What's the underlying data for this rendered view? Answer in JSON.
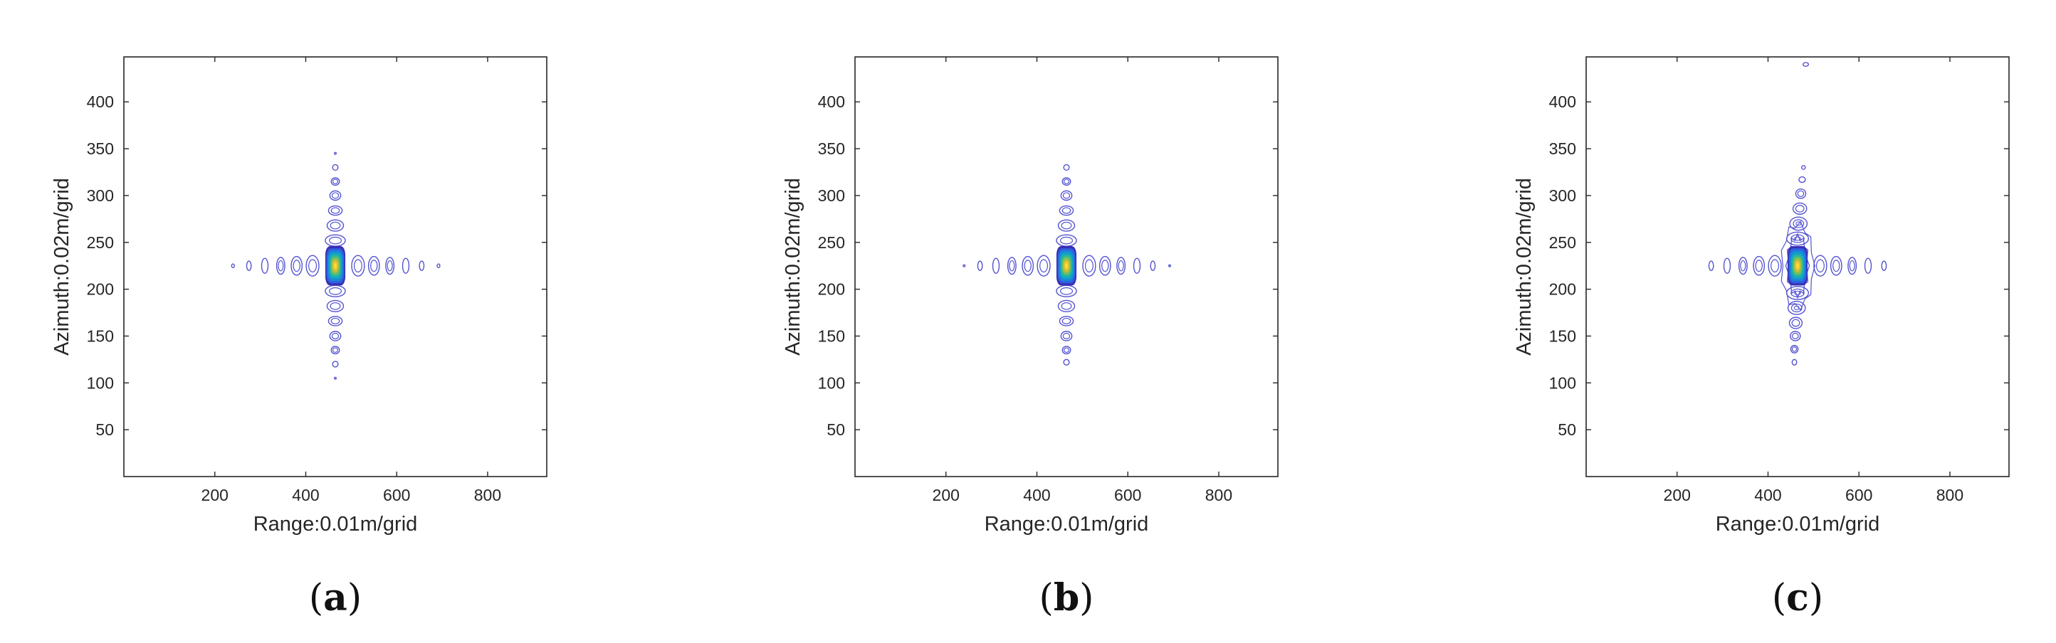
{
  "chart_data": [
    {
      "type": "contour",
      "panel_label": "(a)",
      "panel_letter": "a",
      "xlabel": "Range:0.01m/grid",
      "ylabel": "Azimuth:0.02m/grid",
      "xlim": [
        0,
        930
      ],
      "ylim": [
        0,
        448
      ],
      "xticks": [
        200,
        400,
        600,
        800
      ],
      "yticks": [
        50,
        100,
        150,
        200,
        250,
        300,
        350,
        400
      ],
      "colormap": "parula",
      "peak": {
        "x": 465,
        "y": 225
      },
      "sidelobes_range": [
        {
          "x": 240,
          "y": 225,
          "rx": 3,
          "ry": 2
        },
        {
          "x": 275,
          "y": 225,
          "rx": 5,
          "ry": 5
        },
        {
          "x": 310,
          "y": 225,
          "rx": 7,
          "ry": 8
        },
        {
          "x": 345,
          "y": 225,
          "rx": 9,
          "ry": 9
        },
        {
          "x": 380,
          "y": 225,
          "rx": 12,
          "ry": 10
        },
        {
          "x": 415,
          "y": 225,
          "rx": 14,
          "ry": 11
        },
        {
          "x": 515,
          "y": 225,
          "rx": 14,
          "ry": 11
        },
        {
          "x": 550,
          "y": 225,
          "rx": 12,
          "ry": 10
        },
        {
          "x": 585,
          "y": 225,
          "rx": 9,
          "ry": 9
        },
        {
          "x": 620,
          "y": 225,
          "rx": 7,
          "ry": 8
        },
        {
          "x": 655,
          "y": 225,
          "rx": 5,
          "ry": 5
        },
        {
          "x": 692,
          "y": 225,
          "rx": 3,
          "ry": 2
        }
      ],
      "sidelobes_azimuth": [
        {
          "x": 465,
          "y": 345,
          "rx": 2,
          "ry": 1
        },
        {
          "x": 465,
          "y": 330,
          "rx": 6,
          "ry": 3
        },
        {
          "x": 465,
          "y": 315,
          "rx": 9,
          "ry": 4
        },
        {
          "x": 465,
          "y": 300,
          "rx": 12,
          "ry": 5
        },
        {
          "x": 465,
          "y": 284,
          "rx": 15,
          "ry": 5
        },
        {
          "x": 465,
          "y": 268,
          "rx": 18,
          "ry": 6
        },
        {
          "x": 465,
          "y": 252,
          "rx": 22,
          "ry": 6
        },
        {
          "x": 465,
          "y": 198,
          "rx": 22,
          "ry": 6
        },
        {
          "x": 465,
          "y": 182,
          "rx": 18,
          "ry": 6
        },
        {
          "x": 465,
          "y": 166,
          "rx": 15,
          "ry": 5
        },
        {
          "x": 465,
          "y": 150,
          "rx": 12,
          "ry": 5
        },
        {
          "x": 465,
          "y": 135,
          "rx": 9,
          "ry": 4
        },
        {
          "x": 465,
          "y": 120,
          "rx": 6,
          "ry": 3
        },
        {
          "x": 465,
          "y": 105,
          "rx": 2,
          "ry": 1
        }
      ]
    },
    {
      "type": "contour",
      "panel_label": "(b)",
      "panel_letter": "b",
      "xlabel": "Range:0.01m/grid",
      "ylabel": "Azimuth:0.02m/grid",
      "xlim": [
        0,
        930
      ],
      "ylim": [
        0,
        448
      ],
      "xticks": [
        200,
        400,
        600,
        800
      ],
      "yticks": [
        50,
        100,
        150,
        200,
        250,
        300,
        350,
        400
      ],
      "colormap": "parula",
      "peak": {
        "x": 465,
        "y": 225
      },
      "sidelobes_range": [
        {
          "x": 240,
          "y": 225,
          "rx": 2,
          "ry": 1
        },
        {
          "x": 275,
          "y": 225,
          "rx": 5,
          "ry": 5
        },
        {
          "x": 310,
          "y": 225,
          "rx": 7,
          "ry": 8
        },
        {
          "x": 345,
          "y": 225,
          "rx": 9,
          "ry": 9
        },
        {
          "x": 380,
          "y": 225,
          "rx": 12,
          "ry": 10
        },
        {
          "x": 415,
          "y": 225,
          "rx": 14,
          "ry": 11
        },
        {
          "x": 515,
          "y": 225,
          "rx": 14,
          "ry": 11
        },
        {
          "x": 550,
          "y": 225,
          "rx": 12,
          "ry": 10
        },
        {
          "x": 585,
          "y": 225,
          "rx": 9,
          "ry": 9
        },
        {
          "x": 620,
          "y": 225,
          "rx": 7,
          "ry": 8
        },
        {
          "x": 655,
          "y": 225,
          "rx": 5,
          "ry": 5
        },
        {
          "x": 692,
          "y": 225,
          "rx": 2,
          "ry": 1
        }
      ],
      "sidelobes_azimuth": [
        {
          "x": 465,
          "y": 330,
          "rx": 6,
          "ry": 3
        },
        {
          "x": 465,
          "y": 315,
          "rx": 9,
          "ry": 4
        },
        {
          "x": 465,
          "y": 300,
          "rx": 12,
          "ry": 5
        },
        {
          "x": 465,
          "y": 284,
          "rx": 15,
          "ry": 5
        },
        {
          "x": 465,
          "y": 268,
          "rx": 18,
          "ry": 6
        },
        {
          "x": 465,
          "y": 252,
          "rx": 22,
          "ry": 6
        },
        {
          "x": 465,
          "y": 198,
          "rx": 22,
          "ry": 6
        },
        {
          "x": 465,
          "y": 182,
          "rx": 18,
          "ry": 6
        },
        {
          "x": 465,
          "y": 166,
          "rx": 15,
          "ry": 5
        },
        {
          "x": 465,
          "y": 150,
          "rx": 12,
          "ry": 5
        },
        {
          "x": 465,
          "y": 135,
          "rx": 9,
          "ry": 4
        },
        {
          "x": 465,
          "y": 122,
          "rx": 6,
          "ry": 3
        }
      ]
    },
    {
      "type": "contour",
      "panel_label": "(c)",
      "panel_letter": "c",
      "xlabel": "Range:0.01m/grid",
      "ylabel": "Azimuth:0.02m/grid",
      "xlim": [
        0,
        930
      ],
      "ylim": [
        0,
        448
      ],
      "xticks": [
        200,
        400,
        600,
        800
      ],
      "yticks": [
        50,
        100,
        150,
        200,
        250,
        300,
        350,
        400
      ],
      "colormap": "parula",
      "peak": {
        "x": 465,
        "y": 225
      },
      "sidelobes_range": [
        {
          "x": 275,
          "y": 225,
          "rx": 5,
          "ry": 5
        },
        {
          "x": 310,
          "y": 225,
          "rx": 7,
          "ry": 8
        },
        {
          "x": 345,
          "y": 225,
          "rx": 9,
          "ry": 9
        },
        {
          "x": 380,
          "y": 225,
          "rx": 12,
          "ry": 10
        },
        {
          "x": 415,
          "y": 225,
          "rx": 14,
          "ry": 11
        },
        {
          "x": 515,
          "y": 225,
          "rx": 14,
          "ry": 11
        },
        {
          "x": 550,
          "y": 225,
          "rx": 12,
          "ry": 10
        },
        {
          "x": 585,
          "y": 225,
          "rx": 9,
          "ry": 9
        },
        {
          "x": 620,
          "y": 225,
          "rx": 7,
          "ry": 8
        },
        {
          "x": 655,
          "y": 225,
          "rx": 5,
          "ry": 5
        }
      ],
      "sidelobes_azimuth": [
        {
          "x": 483,
          "y": 440,
          "rx": 6,
          "ry": 2
        },
        {
          "x": 478,
          "y": 330,
          "rx": 4,
          "ry": 2
        },
        {
          "x": 475,
          "y": 317,
          "rx": 7,
          "ry": 3
        },
        {
          "x": 472,
          "y": 302,
          "rx": 11,
          "ry": 5
        },
        {
          "x": 470,
          "y": 286,
          "rx": 15,
          "ry": 6
        },
        {
          "x": 467,
          "y": 270,
          "rx": 19,
          "ry": 7
        },
        {
          "x": 465,
          "y": 254,
          "rx": 24,
          "ry": 7
        },
        {
          "x": 465,
          "y": 196,
          "rx": 24,
          "ry": 7
        },
        {
          "x": 463,
          "y": 180,
          "rx": 19,
          "ry": 7
        },
        {
          "x": 461,
          "y": 164,
          "rx": 14,
          "ry": 6
        },
        {
          "x": 460,
          "y": 150,
          "rx": 11,
          "ry": 5
        },
        {
          "x": 458,
          "y": 136,
          "rx": 8,
          "ry": 4
        },
        {
          "x": 458,
          "y": 122,
          "rx": 5,
          "ry": 3
        }
      ],
      "irregular_envelope": true
    }
  ]
}
